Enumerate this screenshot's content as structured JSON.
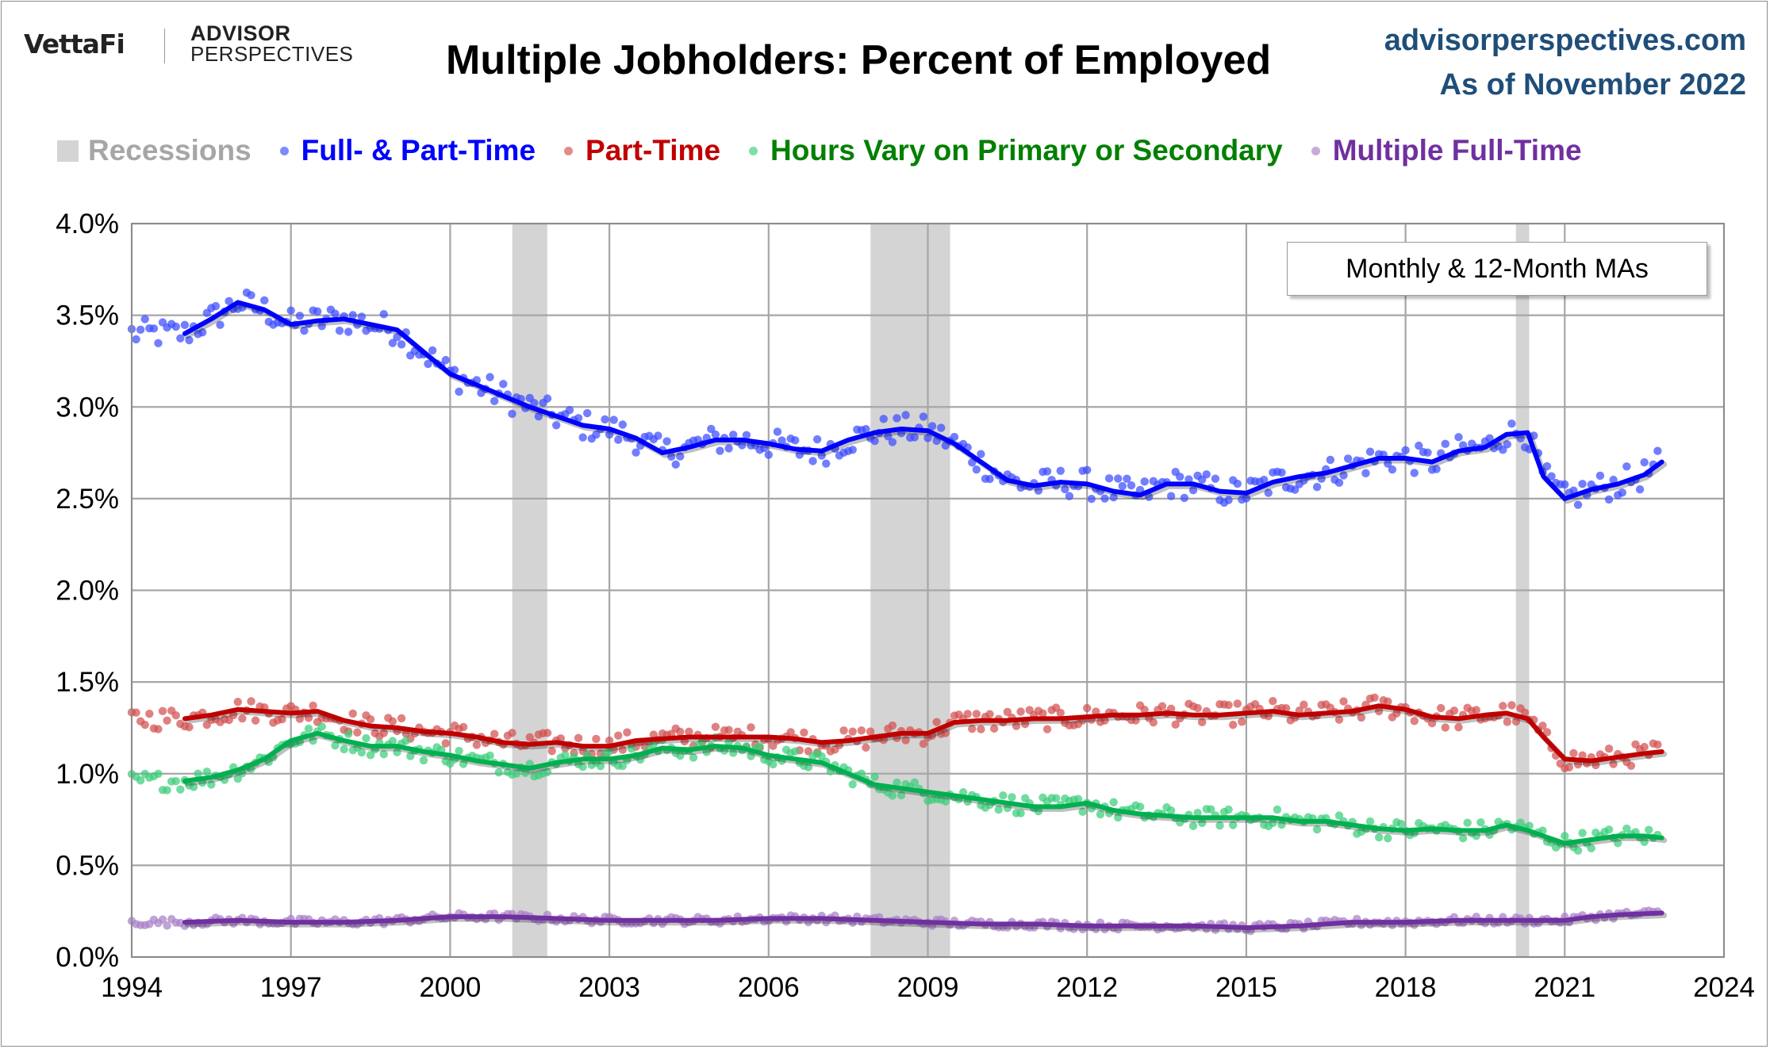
{
  "header": {
    "logo_vettafi": "VettaFi",
    "logo_advisor": "ADVISOR",
    "logo_perspectives": "PERSPECTIVES",
    "title": "Multiple Jobholders: Percent of Employed",
    "site": "advisorperspectives.com",
    "as_of": "As of November 2022"
  },
  "annotation": "Monthly & 12-Month MAs",
  "colors": {
    "full_part": "#0000ff",
    "part_time": "#c00000",
    "hours_vary": "#00b050",
    "multiple_full": "#7030a0",
    "recession": "#d4d4d4",
    "grid": "#a6a6a6"
  },
  "legend": [
    {
      "label": "Recessions",
      "color": "#a6a6a6",
      "swatch": "rect",
      "swatch_color": "#d4d4d4"
    },
    {
      "label": "Full- & Part-Time",
      "color": "#0000ff",
      "swatch": "dot",
      "swatch_color": "#3b4cff"
    },
    {
      "label": "Part-Time",
      "color": "#c00000",
      "swatch": "dot",
      "swatch_color": "#d35050"
    },
    {
      "label": "Hours Vary on Primary or Secondary",
      "color": "#008000",
      "swatch": "dot",
      "swatch_color": "#3ccd7a"
    },
    {
      "label": "Multiple Full-Time",
      "color": "#7030a0",
      "swatch": "dot",
      "swatch_color": "#a880c8"
    }
  ],
  "chart_data": {
    "type": "line",
    "title": "Multiple Jobholders: Percent of Employed",
    "x_range": [
      1994,
      2024
    ],
    "x_ticks": [
      1994,
      1997,
      2000,
      2003,
      2006,
      2009,
      2012,
      2015,
      2018,
      2021,
      2024
    ],
    "y_range": [
      0.0,
      4.0
    ],
    "y_ticks": [
      "0.0%",
      "0.5%",
      "1.0%",
      "1.5%",
      "2.0%",
      "2.5%",
      "3.0%",
      "3.5%",
      "4.0%"
    ],
    "grid": true,
    "legend_position": "top",
    "recessions": [
      [
        2001.17,
        2001.83
      ],
      [
        2007.92,
        2009.42
      ],
      [
        2020.08,
        2020.33
      ]
    ],
    "series": [
      {
        "name": "Full- & Part-Time",
        "color": "#0000ff",
        "ma_x": [
          1995.0,
          1995.5,
          1996.0,
          1996.5,
          1997.0,
          1997.5,
          1998.0,
          1998.5,
          1999.0,
          1999.5,
          2000.0,
          2000.5,
          2001.0,
          2001.5,
          2002.0,
          2002.5,
          2003.0,
          2003.5,
          2004.0,
          2004.5,
          2005.0,
          2005.5,
          2006.0,
          2006.5,
          2007.0,
          2007.5,
          2008.0,
          2008.5,
          2009.0,
          2009.5,
          2010.0,
          2010.5,
          2011.0,
          2011.5,
          2012.0,
          2012.5,
          2013.0,
          2013.5,
          2014.0,
          2014.5,
          2015.0,
          2015.5,
          2016.0,
          2016.5,
          2017.0,
          2017.5,
          2018.0,
          2018.5,
          2019.0,
          2019.5,
          2019.9,
          2020.3,
          2020.6,
          2021.0,
          2021.5,
          2022.0,
          2022.5,
          2022.83
        ],
        "ma_y": [
          3.4,
          3.48,
          3.57,
          3.53,
          3.45,
          3.47,
          3.48,
          3.45,
          3.42,
          3.3,
          3.18,
          3.12,
          3.06,
          3.0,
          2.95,
          2.9,
          2.88,
          2.83,
          2.75,
          2.78,
          2.82,
          2.82,
          2.8,
          2.77,
          2.76,
          2.82,
          2.86,
          2.88,
          2.87,
          2.8,
          2.7,
          2.6,
          2.57,
          2.59,
          2.58,
          2.54,
          2.52,
          2.58,
          2.58,
          2.54,
          2.53,
          2.59,
          2.62,
          2.64,
          2.68,
          2.72,
          2.72,
          2.7,
          2.76,
          2.78,
          2.85,
          2.86,
          2.62,
          2.5,
          2.55,
          2.58,
          2.63,
          2.7
        ],
        "monthly_noise": 0.08,
        "monthly_start": 1994.0
      },
      {
        "name": "Part-Time",
        "color": "#c00000",
        "ma_x": [
          1995.0,
          1995.5,
          1996.0,
          1996.5,
          1997.0,
          1997.5,
          1998.0,
          1998.5,
          1999.0,
          1999.5,
          2000.0,
          2000.5,
          2001.0,
          2001.5,
          2002.0,
          2002.5,
          2003.0,
          2003.5,
          2004.0,
          2004.5,
          2005.0,
          2005.5,
          2006.0,
          2006.5,
          2007.0,
          2007.5,
          2008.0,
          2008.5,
          2009.0,
          2009.5,
          2010.0,
          2010.5,
          2011.0,
          2011.5,
          2012.0,
          2012.5,
          2013.0,
          2013.5,
          2014.0,
          2014.5,
          2015.0,
          2015.5,
          2016.0,
          2016.5,
          2017.0,
          2017.5,
          2018.0,
          2018.5,
          2019.0,
          2019.5,
          2019.9,
          2020.3,
          2020.6,
          2021.0,
          2021.5,
          2022.0,
          2022.5,
          2022.83
        ],
        "ma_y": [
          1.3,
          1.32,
          1.35,
          1.34,
          1.33,
          1.34,
          1.29,
          1.26,
          1.25,
          1.23,
          1.22,
          1.2,
          1.17,
          1.16,
          1.17,
          1.15,
          1.15,
          1.18,
          1.19,
          1.2,
          1.2,
          1.2,
          1.2,
          1.19,
          1.17,
          1.18,
          1.2,
          1.22,
          1.22,
          1.28,
          1.29,
          1.29,
          1.3,
          1.3,
          1.31,
          1.32,
          1.32,
          1.33,
          1.32,
          1.32,
          1.33,
          1.34,
          1.32,
          1.33,
          1.34,
          1.37,
          1.35,
          1.31,
          1.3,
          1.32,
          1.33,
          1.3,
          1.2,
          1.08,
          1.07,
          1.09,
          1.11,
          1.12
        ],
        "monthly_noise": 0.06,
        "monthly_start": 1994.0
      },
      {
        "name": "Hours Vary on Primary or Secondary",
        "color": "#00b050",
        "ma_x": [
          1995.0,
          1995.5,
          1996.0,
          1996.5,
          1997.0,
          1997.5,
          1998.0,
          1998.5,
          1999.0,
          1999.5,
          2000.0,
          2000.5,
          2001.0,
          2001.5,
          2002.0,
          2002.5,
          2003.0,
          2003.5,
          2004.0,
          2004.5,
          2005.0,
          2005.5,
          2006.0,
          2006.5,
          2007.0,
          2007.5,
          2008.0,
          2008.5,
          2009.0,
          2009.5,
          2010.0,
          2010.5,
          2011.0,
          2011.5,
          2012.0,
          2012.5,
          2013.0,
          2013.5,
          2014.0,
          2014.5,
          2015.0,
          2015.5,
          2016.0,
          2016.5,
          2017.0,
          2017.5,
          2018.0,
          2018.5,
          2019.0,
          2019.5,
          2019.9,
          2020.3,
          2020.6,
          2021.0,
          2021.5,
          2022.0,
          2022.5,
          2022.83
        ],
        "ma_y": [
          0.96,
          0.98,
          1.02,
          1.08,
          1.18,
          1.22,
          1.18,
          1.15,
          1.15,
          1.12,
          1.1,
          1.07,
          1.05,
          1.03,
          1.06,
          1.08,
          1.08,
          1.1,
          1.14,
          1.13,
          1.15,
          1.14,
          1.1,
          1.08,
          1.06,
          1.0,
          0.94,
          0.92,
          0.9,
          0.88,
          0.86,
          0.84,
          0.82,
          0.82,
          0.84,
          0.8,
          0.78,
          0.77,
          0.76,
          0.76,
          0.76,
          0.76,
          0.74,
          0.74,
          0.72,
          0.7,
          0.69,
          0.7,
          0.69,
          0.69,
          0.72,
          0.69,
          0.66,
          0.62,
          0.64,
          0.66,
          0.66,
          0.65
        ],
        "monthly_noise": 0.05,
        "monthly_start": 1994.0
      },
      {
        "name": "Multiple Full-Time",
        "color": "#7030a0",
        "ma_x": [
          1995.0,
          1996.0,
          1997.0,
          1998.0,
          1999.0,
          2000.0,
          2001.0,
          2002.0,
          2003.0,
          2004.0,
          2005.0,
          2006.0,
          2007.0,
          2008.0,
          2009.0,
          2010.0,
          2011.0,
          2012.0,
          2013.0,
          2014.0,
          2015.0,
          2016.0,
          2017.0,
          2018.0,
          2019.0,
          2020.0,
          2021.0,
          2021.5,
          2022.0,
          2022.83
        ],
        "ma_y": [
          0.19,
          0.2,
          0.19,
          0.19,
          0.2,
          0.22,
          0.22,
          0.21,
          0.2,
          0.2,
          0.2,
          0.21,
          0.21,
          0.2,
          0.19,
          0.18,
          0.18,
          0.17,
          0.17,
          0.17,
          0.16,
          0.17,
          0.19,
          0.19,
          0.2,
          0.2,
          0.2,
          0.22,
          0.23,
          0.24
        ],
        "monthly_noise": 0.02,
        "monthly_start": 1994.0
      }
    ]
  }
}
